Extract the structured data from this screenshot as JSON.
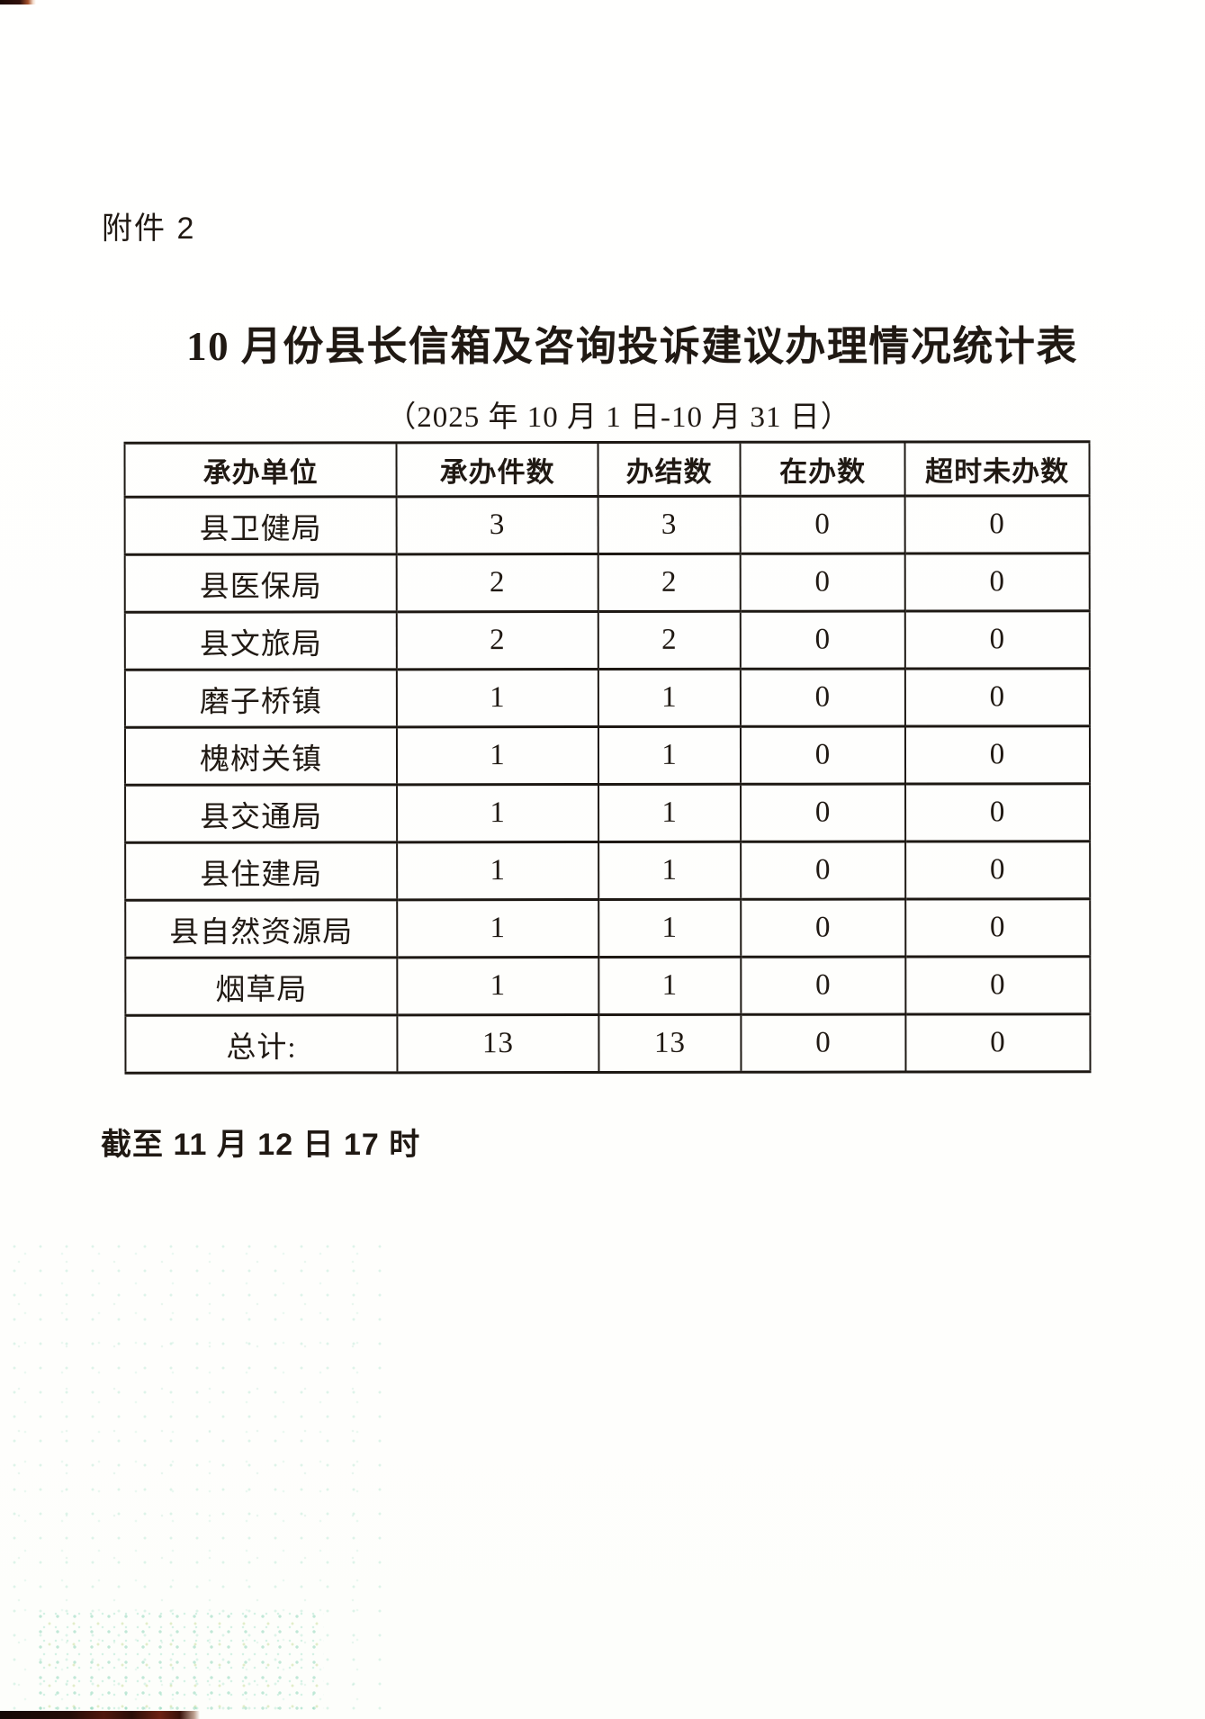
{
  "page": {
    "attachment_label": "附件 2",
    "title": "10 月份县长信箱及咨询投诉建议办理情况统计表",
    "subtitle": "（2025 年 10 月 1 日-10 月 31 日）",
    "footnote": "截至 11 月 12 日 17 时"
  },
  "table": {
    "headers": [
      "承办单位",
      "承办件数",
      "办结数",
      "在办数",
      "超时未办数"
    ],
    "rows": [
      [
        "县卫健局",
        "3",
        "3",
        "0",
        "0"
      ],
      [
        "县医保局",
        "2",
        "2",
        "0",
        "0"
      ],
      [
        "县文旅局",
        "2",
        "2",
        "0",
        "0"
      ],
      [
        "磨子桥镇",
        "1",
        "1",
        "0",
        "0"
      ],
      [
        "槐树关镇",
        "1",
        "1",
        "0",
        "0"
      ],
      [
        "县交通局",
        "1",
        "1",
        "0",
        "0"
      ],
      [
        "县住建局",
        "1",
        "1",
        "0",
        "0"
      ],
      [
        "县自然资源局",
        "1",
        "1",
        "0",
        "0"
      ],
      [
        "烟草局",
        "1",
        "1",
        "0",
        "0"
      ],
      [
        "总计:",
        "13",
        "13",
        "0",
        "0"
      ]
    ]
  },
  "colors": {
    "paper": "#fffffe",
    "ink": "#201913",
    "table_border": "#1d1813",
    "scan_noise_green": "#3ebe8e",
    "scan_edge_dark": "#230c07"
  }
}
